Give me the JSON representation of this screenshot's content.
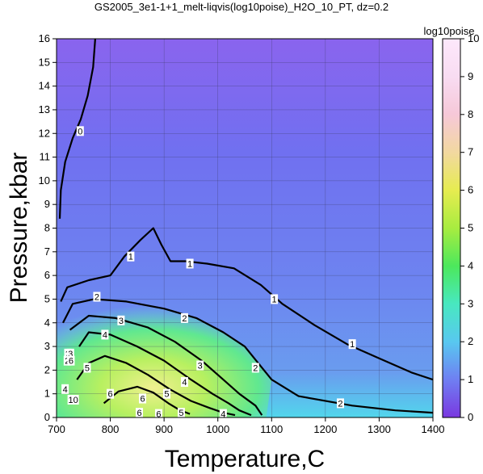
{
  "chart_data": {
    "type": "heatmap",
    "title": "GS2005_3e1-1+1_melt-liqvis(log10poise)_H2O_10_PT, dz=0.2",
    "xlabel": "Temperature,C",
    "ylabel": "Pressure,kbar",
    "xlim": [
      700,
      1400
    ],
    "ylim": [
      0,
      16
    ],
    "x_ticks": [
      "700",
      "800",
      "900",
      "1000",
      "1100",
      "1200",
      "1300",
      "1400"
    ],
    "y_ticks": [
      "0",
      "1",
      "2",
      "3",
      "4",
      "5",
      "6",
      "7",
      "8",
      "9",
      "10",
      "11",
      "12",
      "13",
      "14",
      "15",
      "16"
    ],
    "grid": true,
    "colorbar": {
      "label": "log10poise",
      "range": [
        0,
        10
      ],
      "ticks": [
        "0",
        "1",
        "2",
        "3",
        "4",
        "5",
        "6",
        "7",
        "8",
        "9",
        "10"
      ],
      "placement": "right"
    },
    "contours": [
      {
        "level": 0,
        "label": "0",
        "points": [
          [
            706,
            8.4
          ],
          [
            708,
            9.6
          ],
          [
            716,
            10.8
          ],
          [
            730,
            11.8
          ],
          [
            745,
            12.6
          ],
          [
            758,
            13.6
          ],
          [
            768,
            14.8
          ],
          [
            772,
            16
          ]
        ]
      },
      {
        "level": 1,
        "label": "1",
        "points": [
          [
            708,
            4.9
          ],
          [
            720,
            5.5
          ],
          [
            760,
            5.8
          ],
          [
            800,
            6.0
          ],
          [
            826,
            6.8
          ],
          [
            856,
            7.5
          ],
          [
            880,
            8.0
          ],
          [
            895,
            7.3
          ],
          [
            912,
            6.6
          ],
          [
            940,
            6.6
          ],
          [
            980,
            6.5
          ],
          [
            1030,
            6.3
          ],
          [
            1080,
            5.6
          ],
          [
            1120,
            4.8
          ],
          [
            1180,
            3.9
          ],
          [
            1240,
            3.1
          ],
          [
            1300,
            2.5
          ],
          [
            1360,
            1.9
          ],
          [
            1400,
            1.6
          ]
        ]
      },
      {
        "level": 2,
        "label": "2",
        "points": [
          [
            712,
            4.0
          ],
          [
            730,
            4.8
          ],
          [
            770,
            5.0
          ],
          [
            830,
            4.9
          ],
          [
            900,
            4.6
          ],
          [
            960,
            4.2
          ],
          [
            1010,
            3.6
          ],
          [
            1050,
            3.0
          ],
          [
            1075,
            2.3
          ],
          [
            1100,
            1.6
          ],
          [
            1150,
            0.9
          ],
          [
            1250,
            0.5
          ],
          [
            1330,
            0.3
          ],
          [
            1400,
            0.2
          ]
        ]
      },
      {
        "level": 3,
        "label": "3",
        "points": [
          [
            725,
            3.7
          ],
          [
            760,
            4.3
          ],
          [
            810,
            4.2
          ],
          [
            870,
            3.8
          ],
          [
            920,
            3.2
          ],
          [
            970,
            2.4
          ],
          [
            1010,
            1.6
          ],
          [
            1040,
            1.0
          ],
          [
            1070,
            0.5
          ],
          [
            1082,
            0.1
          ]
        ]
      },
      {
        "level": 4,
        "label": "4",
        "points": [
          [
            742,
            3.0
          ],
          [
            760,
            3.6
          ],
          [
            800,
            3.5
          ],
          [
            850,
            3.0
          ],
          [
            900,
            2.4
          ],
          [
            950,
            1.6
          ],
          [
            990,
            1.0
          ],
          [
            1020,
            0.6
          ],
          [
            1040,
            0.3
          ],
          [
            1062,
            0.1
          ]
        ]
      },
      {
        "level": 5,
        "label": "5",
        "points": [
          [
            738,
            1.6
          ],
          [
            760,
            2.3
          ],
          [
            790,
            2.6
          ],
          [
            830,
            2.3
          ],
          [
            870,
            1.8
          ],
          [
            910,
            1.2
          ],
          [
            950,
            0.7
          ],
          [
            985,
            0.4
          ],
          [
            1010,
            0.2
          ],
          [
            1032,
            0.1
          ]
        ]
      },
      {
        "level": 6,
        "label": "6",
        "points": [
          [
            788,
            0.6
          ],
          [
            815,
            1.1
          ],
          [
            850,
            1.3
          ],
          [
            880,
            1.05
          ],
          [
            908,
            0.6
          ],
          [
            930,
            0.3
          ],
          [
            948,
            0.15
          ]
        ]
      }
    ],
    "contour_labels": [
      {
        "text": "0",
        "x": 744,
        "y": 12.1
      },
      {
        "text": "1",
        "x": 838,
        "y": 6.8
      },
      {
        "text": "1",
        "x": 948,
        "y": 6.5
      },
      {
        "text": "1",
        "x": 1105,
        "y": 5.0
      },
      {
        "text": "1",
        "x": 1250,
        "y": 3.1
      },
      {
        "text": "2",
        "x": 775,
        "y": 5.1
      },
      {
        "text": "2",
        "x": 938,
        "y": 4.2
      },
      {
        "text": "2",
        "x": 1070,
        "y": 2.1
      },
      {
        "text": "2",
        "x": 1228,
        "y": 0.6
      },
      {
        "text": "3",
        "x": 820,
        "y": 4.1
      },
      {
        "text": "3",
        "x": 967,
        "y": 2.2
      },
      {
        "text": "4",
        "x": 790,
        "y": 3.5
      },
      {
        "text": "4",
        "x": 938,
        "y": 1.5
      },
      {
        "text": "4",
        "x": 1010,
        "y": 0.15
      },
      {
        "text": "5",
        "x": 757,
        "y": 2.1
      },
      {
        "text": "5",
        "x": 905,
        "y": 1.0
      },
      {
        "text": "5",
        "x": 932,
        "y": 0.2
      },
      {
        "text": "6",
        "x": 800,
        "y": 1.0
      },
      {
        "text": "6",
        "x": 860,
        "y": 0.8
      },
      {
        "text": "6",
        "x": 854,
        "y": 0.2
      },
      {
        "text": "6",
        "x": 890,
        "y": 0.15
      },
      {
        "text": "2",
        "x": 721,
        "y": 2.7
      },
      {
        "text": "2",
        "x": 720,
        "y": 2.4
      },
      {
        "text": "3",
        "x": 726,
        "y": 2.7
      },
      {
        "text": "6",
        "x": 727,
        "y": 2.4
      },
      {
        "text": "4",
        "x": 716,
        "y": 1.2
      },
      {
        "text": "10",
        "x": 731,
        "y": 0.75
      }
    ]
  }
}
